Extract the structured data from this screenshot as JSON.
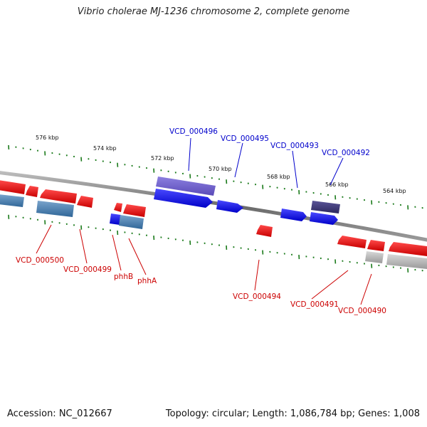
{
  "title": "Vibrio cholerae MJ-1236 chromosome 2, complete genome",
  "footer": {
    "accession": "Accession: NC_012667",
    "summary": "Topology: circular; Length: 1,086,784 bp; Genes: 1,008"
  },
  "colors": {
    "forward_gene": "#0000ee",
    "reverse_gene": "#ee0000",
    "forward_cds_light": "#6a5acd",
    "forward_cds_dark": "#3f3a78",
    "reverse_cds": "#4a7fb0",
    "grey_gene": "#b0b0b0",
    "backbone": "#808080",
    "ticks": "#1a7a1a",
    "label_blue": "#0000cc",
    "label_red": "#cc0000"
  },
  "scale_labels": [
    "576 kbp",
    "574 kbp",
    "572 kbp",
    "570 kbp",
    "568 kbp",
    "566 kbp",
    "564 kbp"
  ],
  "forward_labels": [
    "VCD_000496",
    "VCD_000495",
    "VCD_000493",
    "VCD_000492"
  ],
  "reverse_labels": [
    "VCD_000500",
    "VCD_000499",
    "phhB",
    "phhA",
    "VCD_000494",
    "VCD_000491",
    "VCD_000490"
  ]
}
